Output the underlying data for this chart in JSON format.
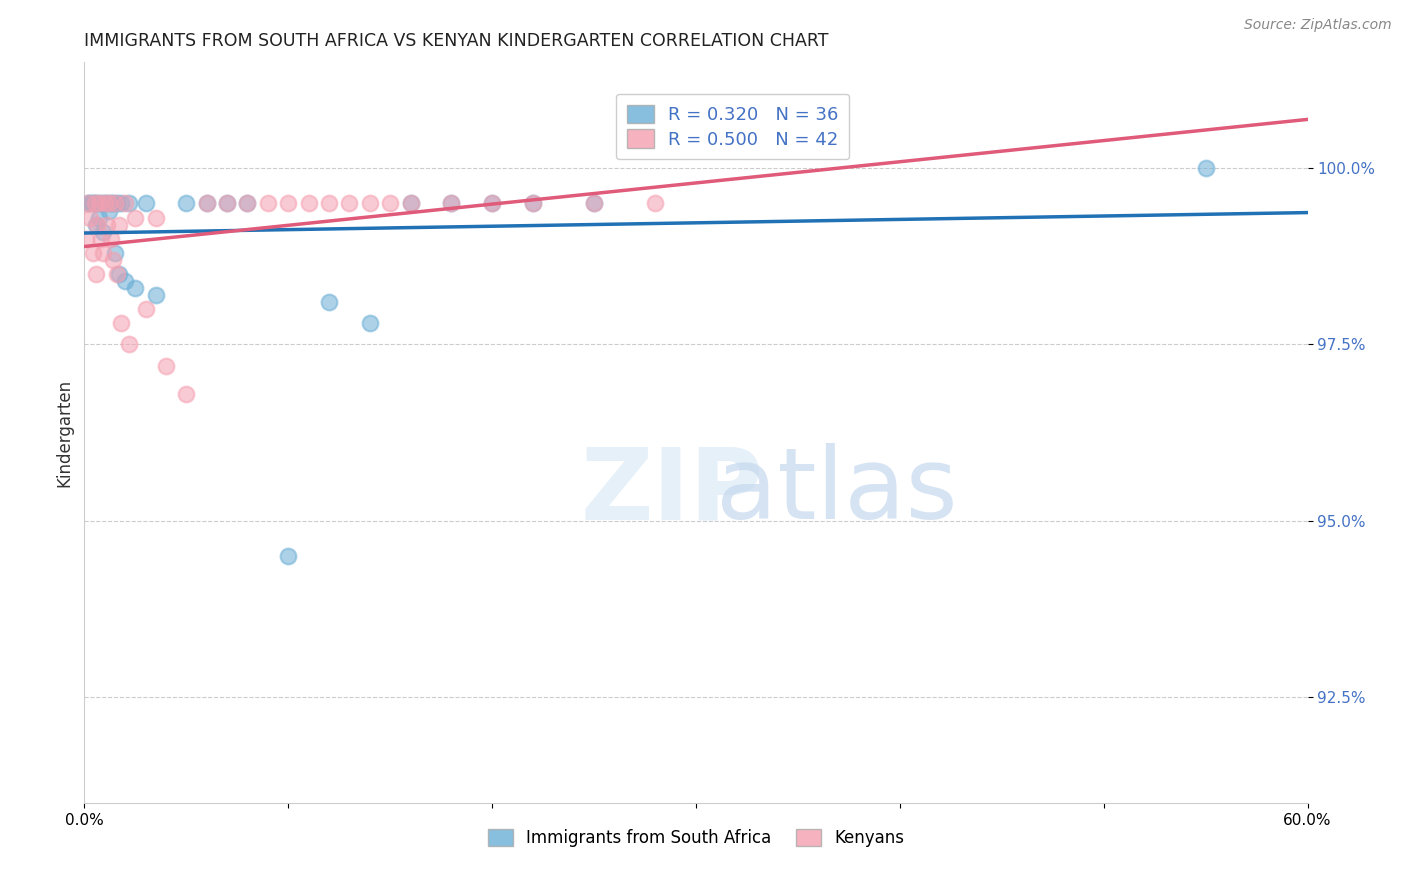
{
  "title": "IMMIGRANTS FROM SOUTH AFRICA VS KENYAN KINDERGARTEN CORRELATION CHART",
  "source": "Source: ZipAtlas.com",
  "ylabel": "Kindergarten",
  "yticks": [
    92.5,
    95.0,
    97.5,
    100.0
  ],
  "ytick_labels": [
    "92.5%",
    "95.0%",
    "97.5%",
    "100.0%"
  ],
  "xlim": [
    0.0,
    60.0
  ],
  "ylim": [
    91.0,
    101.5
  ],
  "legend_blue_label": "R = 0.320   N = 36",
  "legend_pink_label": "R = 0.500   N = 42",
  "blue_color": "#6baed6",
  "pink_color": "#f4a0b0",
  "blue_line_color": "#2171b5",
  "pink_line_color": "#e05a7a",
  "ytick_color": "#4472c4",
  "grid_color": "#cccccc",
  "blue_x": [
    0.2,
    0.3,
    0.4,
    0.5,
    0.55,
    0.6,
    0.7,
    0.8,
    0.9,
    1.0,
    1.1,
    1.2,
    1.3,
    1.4,
    1.5,
    1.6,
    1.7,
    1.8,
    2.0,
    2.2,
    2.5,
    3.0,
    3.5,
    5.0,
    6.0,
    7.0,
    8.0,
    10.0,
    12.0,
    14.0,
    16.0,
    18.0,
    20.0,
    22.0,
    25.0,
    55.0
  ],
  "blue_y": [
    99.5,
    99.5,
    99.5,
    99.5,
    99.2,
    99.5,
    99.3,
    99.5,
    99.1,
    99.5,
    99.5,
    99.4,
    99.5,
    99.5,
    98.8,
    99.5,
    98.5,
    99.5,
    98.4,
    99.5,
    98.3,
    99.5,
    98.2,
    99.5,
    99.5,
    99.5,
    99.5,
    94.5,
    98.1,
    97.8,
    99.5,
    99.5,
    99.5,
    99.5,
    99.5,
    100.0
  ],
  "pink_x": [
    0.1,
    0.2,
    0.3,
    0.4,
    0.5,
    0.55,
    0.6,
    0.7,
    0.8,
    0.9,
    1.0,
    1.1,
    1.2,
    1.3,
    1.4,
    1.5,
    1.6,
    1.7,
    1.8,
    2.0,
    2.2,
    2.5,
    3.0,
    3.5,
    4.0,
    5.0,
    6.0,
    7.0,
    8.0,
    9.0,
    10.0,
    11.0,
    12.0,
    13.0,
    14.0,
    15.0,
    16.0,
    18.0,
    20.0,
    22.0,
    25.0,
    28.0
  ],
  "pink_y": [
    99.0,
    99.5,
    99.3,
    98.8,
    99.5,
    98.5,
    99.2,
    99.5,
    99.0,
    98.8,
    99.5,
    99.2,
    99.5,
    99.0,
    98.7,
    99.5,
    98.5,
    99.2,
    97.8,
    99.5,
    97.5,
    99.3,
    98.0,
    99.3,
    97.2,
    96.8,
    99.5,
    99.5,
    99.5,
    99.5,
    99.5,
    99.5,
    99.5,
    99.5,
    99.5,
    99.5,
    99.5,
    99.5,
    99.5,
    99.5,
    99.5,
    99.5
  ]
}
